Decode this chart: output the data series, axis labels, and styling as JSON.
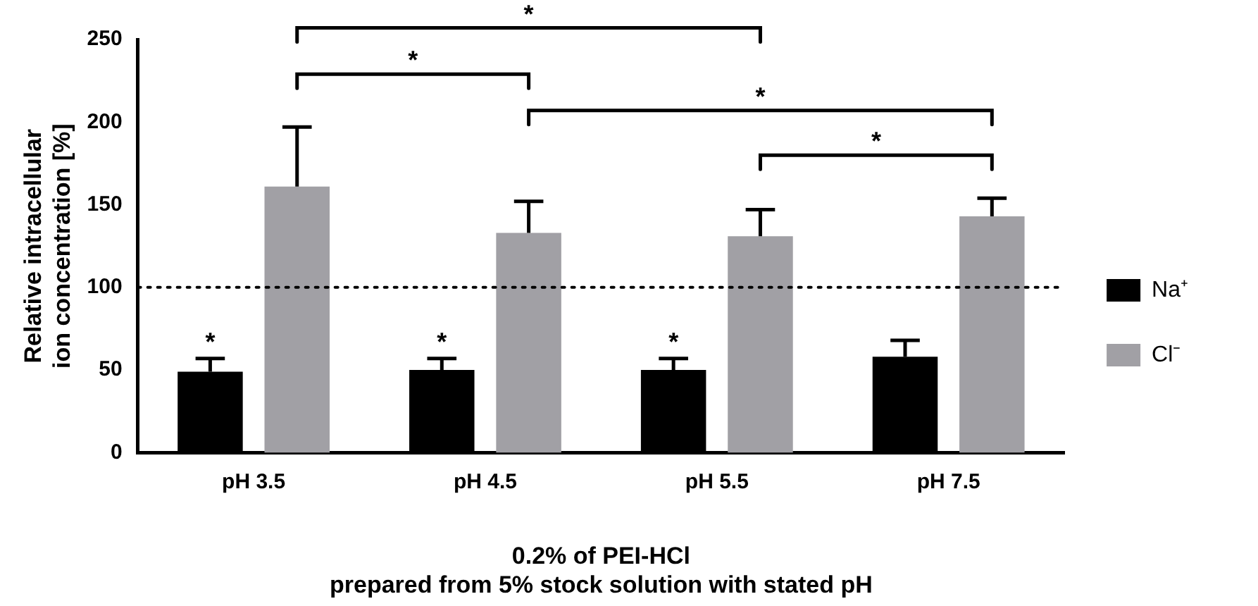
{
  "chart_data": {
    "type": "bar",
    "xlabel": "0.2% of PEI-HCl\nprepared from 5% stock solution with stated pH",
    "ylabel": "Relative intracellular\nion concentration [%]",
    "categories": [
      "pH 3.5",
      "pH 4.5",
      "pH 5.5",
      "pH 7.5"
    ],
    "series": [
      {
        "name": "Na⁺",
        "color": "#000000",
        "values": [
          49,
          50,
          50,
          58
        ],
        "errors": [
          [
            49,
            57
          ],
          [
            50,
            57
          ],
          [
            50,
            57
          ],
          [
            58,
            68
          ]
        ]
      },
      {
        "name": "Cl⁻",
        "color": "#a1a0a5",
        "values": [
          161,
          133,
          131,
          143
        ],
        "errors": [
          [
            161,
            197
          ],
          [
            133,
            152
          ],
          [
            131,
            147
          ],
          [
            143,
            154
          ]
        ]
      }
    ],
    "ylim": [
      0,
      250
    ],
    "yticks": [
      0,
      50,
      100,
      150,
      200,
      250
    ],
    "ref_lines": [
      {
        "axis": "y",
        "value": 100,
        "line_style": "dotted",
        "color": "#000000"
      }
    ],
    "legend": "right",
    "grid": false,
    "annotations": [
      "*",
      "*",
      "*",
      "*",
      "*",
      "*",
      "*"
    ]
  }
}
